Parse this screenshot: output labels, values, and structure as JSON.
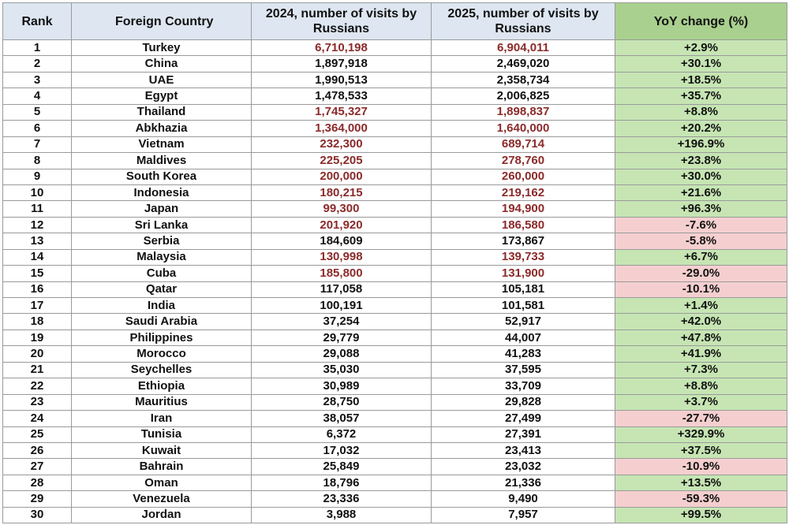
{
  "table": {
    "header": [
      "Rank",
      "Foreign Country",
      "2024, number of visits by Russians",
      "2025, number of visits by Russians",
      "YoY change (%)"
    ],
    "header_fill": "#dde6f1",
    "change_header_fill": "#a9d08e",
    "rise_fill": "#c6e5b3",
    "fall_fill": "#f5cfcf",
    "rows": [
      {
        "cells": [
          "1",
          "Turkey",
          "6,710,198",
          "6,904,011",
          "+2.9%"
        ],
        "color": "#8b2a2a"
      },
      {
        "cells": [
          "2",
          "China",
          "1,897,918",
          "2,469,020",
          "+30.1%"
        ],
        "color": "#111111"
      },
      {
        "cells": [
          "3",
          "UAE",
          "1,990,513",
          "2,358,734",
          "+18.5%"
        ],
        "color": "#111111"
      },
      {
        "cells": [
          "4",
          "Egypt",
          "1,478,533",
          "2,006,825",
          "+35.7%"
        ],
        "color": "#111111"
      },
      {
        "cells": [
          "5",
          "Thailand",
          "1,745,327",
          "1,898,837",
          "+8.8%"
        ],
        "color": "#8b2a2a"
      },
      {
        "cells": [
          "6",
          "Abkhazia",
          "1,364,000",
          "1,640,000",
          "+20.2%"
        ],
        "color": "#8b2a2a"
      },
      {
        "cells": [
          "7",
          "Vietnam",
          "232,300",
          "689,714",
          "+196.9%"
        ],
        "color": "#8b2a2a"
      },
      {
        "cells": [
          "8",
          "Maldives",
          "225,205",
          "278,760",
          "+23.8%"
        ],
        "color": "#8b2a2a"
      },
      {
        "cells": [
          "9",
          "South Korea",
          "200,000",
          "260,000",
          "+30.0%"
        ],
        "color": "#8b2a2a"
      },
      {
        "cells": [
          "10",
          "Indonesia",
          "180,215",
          "219,162",
          "+21.6%"
        ],
        "color": "#8b2a2a"
      },
      {
        "cells": [
          "11",
          "Japan",
          "99,300",
          "194,900",
          "+96.3%"
        ],
        "color": "#8b2a2a"
      },
      {
        "cells": [
          "12",
          "Sri Lanka",
          "201,920",
          "186,580",
          "-7.6%"
        ],
        "color": "#8b2a2a"
      },
      {
        "cells": [
          "13",
          "Serbia",
          "184,609",
          "173,867",
          "-5.8%"
        ],
        "color": "#111111"
      },
      {
        "cells": [
          "14",
          "Malaysia",
          "130,998",
          "139,733",
          "+6.7%"
        ],
        "color": "#8b2a2a"
      },
      {
        "cells": [
          "15",
          "Cuba",
          "185,800",
          "131,900",
          "-29.0%"
        ],
        "color": "#8b2a2a"
      },
      {
        "cells": [
          "16",
          "Qatar",
          "117,058",
          "105,181",
          "-10.1%"
        ],
        "color": "#111111"
      },
      {
        "cells": [
          "17",
          "India",
          "100,191",
          "101,581",
          "+1.4%"
        ],
        "color": "#111111"
      },
      {
        "cells": [
          "18",
          "Saudi Arabia",
          "37,254",
          "52,917",
          "+42.0%"
        ],
        "color": "#111111"
      },
      {
        "cells": [
          "19",
          "Philippines",
          "29,779",
          "44,007",
          "+47.8%"
        ],
        "color": "#111111"
      },
      {
        "cells": [
          "20",
          "Morocco",
          "29,088",
          "41,283",
          "+41.9%"
        ],
        "color": "#111111"
      },
      {
        "cells": [
          "21",
          "Seychelles",
          "35,030",
          "37,595",
          "+7.3%"
        ],
        "color": "#111111"
      },
      {
        "cells": [
          "22",
          "Ethiopia",
          "30,989",
          "33,709",
          "+8.8%"
        ],
        "color": "#111111"
      },
      {
        "cells": [
          "23",
          "Mauritius",
          "28,750",
          "29,828",
          "+3.7%"
        ],
        "color": "#111111"
      },
      {
        "cells": [
          "24",
          "Iran",
          "38,057",
          "27,499",
          "-27.7%"
        ],
        "color": "#111111"
      },
      {
        "cells": [
          "25",
          "Tunisia",
          "6,372",
          "27,391",
          "+329.9%"
        ],
        "color": "#111111"
      },
      {
        "cells": [
          "26",
          "Kuwait",
          "17,032",
          "23,413",
          "+37.5%"
        ],
        "color": "#111111"
      },
      {
        "cells": [
          "27",
          "Bahrain",
          "25,849",
          "23,032",
          "-10.9%"
        ],
        "color": "#111111"
      },
      {
        "cells": [
          "28",
          "Oman",
          "18,796",
          "21,336",
          "+13.5%"
        ],
        "color": "#111111"
      },
      {
        "cells": [
          "29",
          "Venezuela",
          "23,336",
          "9,490",
          "-59.3%"
        ],
        "color": "#111111"
      },
      {
        "cells": [
          "30",
          "Jordan",
          "3,988",
          "7,957",
          "+99.5%"
        ],
        "color": "#111111"
      }
    ]
  }
}
